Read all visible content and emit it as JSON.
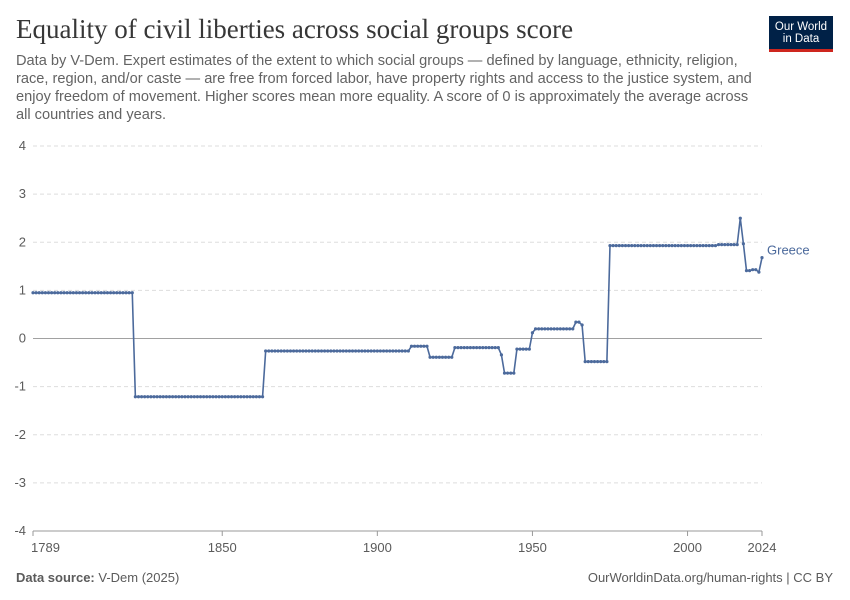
{
  "header": {
    "title": "Equality of civil liberties across social groups score",
    "subtitle": "Data by V-Dem. Expert estimates of the extent to which social groups — defined by language, ethnicity, religion, race, region, and/or caste — are free from forced labor, have property rights and access to the justice system, and enjoy freedom of movement. Higher scores mean more equality. A score of 0 is approximately the average across all countries and years."
  },
  "logo": {
    "line1": "Our World",
    "line2": "in Data"
  },
  "footer": {
    "source_label": "Data source:",
    "source_value": "V-Dem (2025)",
    "right": "OurWorldinData.org/human-rights | CC BY"
  },
  "colors": {
    "series": "#4c6a9c",
    "grid": "#dddddd",
    "zero_line": "#a1a1a1",
    "text": "#5b5b5b"
  },
  "chart_data": {
    "type": "line",
    "title": "Equality of civil liberties across social groups score",
    "xlabel": "",
    "ylabel": "",
    "xlim": [
      1789,
      2024
    ],
    "ylim": [
      -4,
      4
    ],
    "y_ticks": [
      4,
      3,
      2,
      1,
      0,
      -1,
      -2,
      -3,
      -4
    ],
    "x_ticks": [
      1789,
      1850,
      1900,
      1950,
      2000,
      2024
    ],
    "grid": true,
    "legend": "end-of-line label",
    "series": [
      {
        "name": "Greece",
        "step": true,
        "segments": [
          {
            "from": 1789,
            "to": 1821,
            "value": 0.95
          },
          {
            "from": 1822,
            "to": 1863,
            "value": -1.21
          },
          {
            "from": 1864,
            "to": 1910,
            "value": -0.26
          },
          {
            "from": 1911,
            "to": 1916,
            "value": -0.16
          },
          {
            "from": 1917,
            "to": 1924,
            "value": -0.39
          },
          {
            "from": 1925,
            "to": 1939,
            "value": -0.19
          },
          {
            "from": 1940,
            "to": 1940,
            "value": -0.34
          },
          {
            "from": 1941,
            "to": 1944,
            "value": -0.72
          },
          {
            "from": 1945,
            "to": 1949,
            "value": -0.22
          },
          {
            "from": 1950,
            "to": 1950,
            "value": 0.12
          },
          {
            "from": 1951,
            "to": 1963,
            "value": 0.2
          },
          {
            "from": 1964,
            "to": 1965,
            "value": 0.34
          },
          {
            "from": 1966,
            "to": 1966,
            "value": 0.28
          },
          {
            "from": 1967,
            "to": 1974,
            "value": -0.48
          },
          {
            "from": 1975,
            "to": 2009,
            "value": 1.93
          },
          {
            "from": 2010,
            "to": 2016,
            "value": 1.95
          },
          {
            "from": 2017,
            "to": 2017,
            "value": 2.5
          },
          {
            "from": 2018,
            "to": 2018,
            "value": 1.97
          },
          {
            "from": 2019,
            "to": 2020,
            "value": 1.41
          },
          {
            "from": 2021,
            "to": 2022,
            "value": 1.43
          },
          {
            "from": 2023,
            "to": 2023,
            "value": 1.38
          },
          {
            "from": 2024,
            "to": 2024,
            "value": 1.68
          }
        ]
      }
    ]
  }
}
